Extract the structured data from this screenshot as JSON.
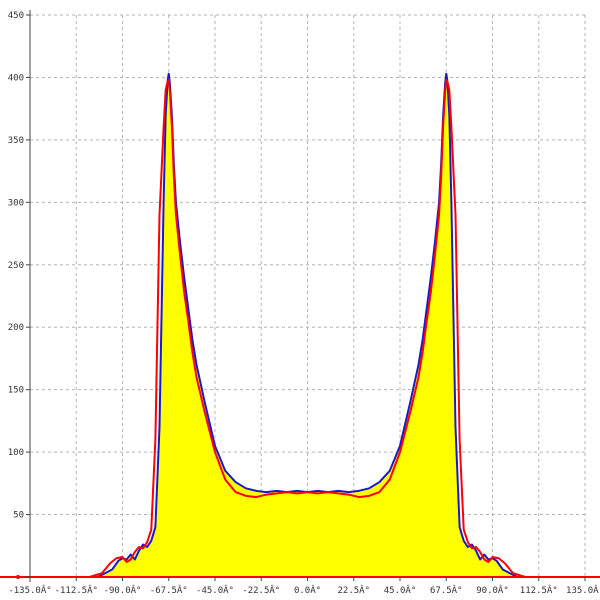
{
  "chart_data": {
    "type": "area",
    "title": "",
    "xlabel": "",
    "ylabel": "",
    "xlim": [
      -135,
      135
    ],
    "ylim": [
      0,
      450
    ],
    "grid": true,
    "x_ticks": [
      -135,
      -112.5,
      -90,
      -67.5,
      -45,
      -22.5,
      0,
      22.5,
      45,
      67.5,
      90,
      112.5,
      135
    ],
    "x_tick_labels": [
      "-135.0Â°",
      "-112.5Â°",
      "-90.0Â°",
      "-67.5Â°",
      "-45.0Â°",
      "-22.5Â°",
      "0.0Â°",
      "22.5Â°",
      "45.0Â°",
      "67.5Â°",
      "90.0Â°",
      "112.5Â°",
      "135.0Â°"
    ],
    "y_ticks": [
      0,
      50,
      100,
      150,
      200,
      250,
      300,
      350,
      400,
      450
    ],
    "y_tick_labels": [
      "0",
      "50",
      "100",
      "150",
      "200",
      "250",
      "300",
      "350",
      "400",
      "450"
    ],
    "colors": {
      "fill": "#ffff00",
      "blue": "#1a1acc",
      "red": "#ff0000"
    },
    "series": [
      {
        "color": "#1a1acc",
        "x": [
          -135,
          -102,
          -95,
          -92,
          -90,
          -88,
          -86,
          -84,
          -82,
          -80,
          -78,
          -76,
          -74,
          -72,
          -70,
          -69,
          -68,
          -67.5,
          -67,
          -66,
          -65,
          -64,
          -62,
          -60,
          -58,
          -56,
          -54,
          -50,
          -45,
          -40,
          -35,
          -30,
          -25,
          -20,
          -15,
          -10,
          -5,
          0,
          5,
          10,
          15,
          20,
          25,
          30,
          35,
          40,
          45,
          50,
          54,
          56,
          58,
          60,
          62,
          64,
          65,
          66,
          67,
          67.5,
          68,
          69,
          70,
          72,
          74,
          76,
          78,
          80,
          82,
          84,
          86,
          88,
          90,
          92,
          95,
          102,
          135
        ],
        "y": [
          0,
          0,
          6,
          13,
          15,
          14,
          18,
          14,
          21,
          26,
          24,
          29,
          40,
          120,
          300,
          370,
          398,
          403,
          396,
          370,
          330,
          300,
          268,
          240,
          215,
          190,
          170,
          140,
          105,
          85,
          76,
          71,
          69,
          68,
          69,
          68,
          69,
          68,
          69,
          68,
          69,
          68,
          69,
          71,
          76,
          85,
          105,
          140,
          170,
          190,
          215,
          240,
          268,
          300,
          330,
          370,
          396,
          403,
          398,
          370,
          300,
          120,
          40,
          29,
          24,
          26,
          21,
          14,
          18,
          14,
          15,
          13,
          6,
          0,
          0
        ]
      },
      {
        "color": "#ff0000",
        "x": [
          -135,
          -106,
          -100,
          -96,
          -93,
          -90,
          -88,
          -86,
          -84,
          -82,
          -80,
          -78,
          -76,
          -74,
          -72,
          -70,
          -69,
          -68,
          -67.5,
          -67,
          -66,
          -65,
          -64,
          -62,
          -60,
          -58,
          -56,
          -54,
          -50,
          -45,
          -40,
          -35,
          -30,
          -25,
          -20,
          -15,
          -10,
          -5,
          0,
          5,
          10,
          15,
          20,
          25,
          30,
          35,
          40,
          45,
          50,
          54,
          56,
          58,
          60,
          62,
          64,
          65,
          66,
          67,
          67.5,
          68,
          69,
          70,
          72,
          74,
          76,
          78,
          80,
          82,
          84,
          86,
          88,
          90,
          93,
          96,
          100,
          106,
          135
        ],
        "y": [
          0,
          0,
          3,
          11,
          15,
          16,
          12,
          14,
          20,
          24,
          23,
          28,
          38,
          110,
          290,
          360,
          390,
          397,
          398,
          390,
          362,
          320,
          290,
          258,
          228,
          205,
          180,
          160,
          132,
          100,
          78,
          68,
          65,
          64,
          66,
          67,
          68,
          67,
          68,
          67,
          68,
          67,
          66,
          64,
          65,
          68,
          78,
          100,
          132,
          160,
          180,
          205,
          228,
          258,
          290,
          320,
          362,
          390,
          398,
          397,
          390,
          360,
          290,
          110,
          38,
          28,
          23,
          24,
          20,
          14,
          12,
          16,
          15,
          11,
          3,
          0,
          0
        ]
      }
    ]
  }
}
